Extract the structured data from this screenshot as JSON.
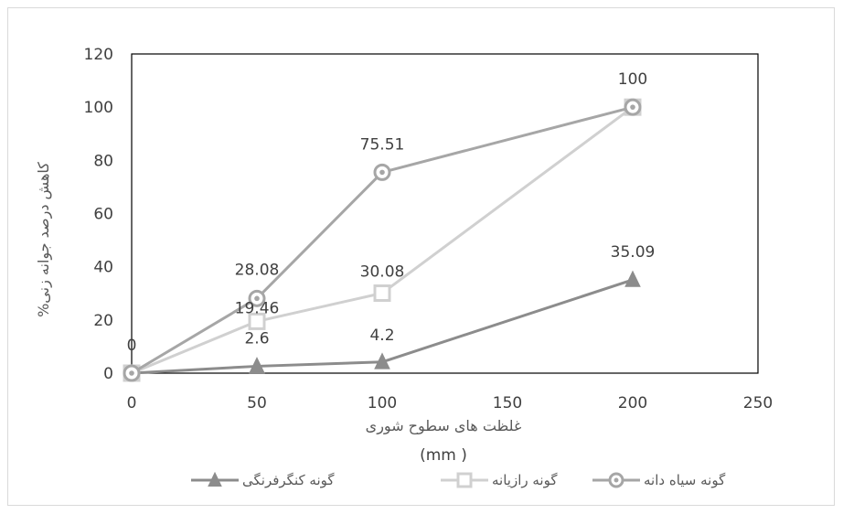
{
  "chart_data": {
    "type": "line",
    "xlabel": "غلظت های سطوح شوری",
    "xunit": "(mm )",
    "ylabel": "%کاهش درصد جوانه زنی",
    "xlim": [
      0,
      250
    ],
    "ylim": [
      0,
      120
    ],
    "x_ticks": [
      "0",
      "50",
      "100",
      "150",
      "200",
      "250"
    ],
    "y_ticks": [
      "0",
      "20",
      "40",
      "60",
      "80",
      "100",
      "120"
    ],
    "grid": false,
    "legend_position": "bottom",
    "series": [
      {
        "name": "گونه سیاه دانه",
        "marker": "circle",
        "color": "#a6a6a6",
        "x": [
          0,
          50,
          100,
          200
        ],
        "values": [
          0,
          28.08,
          75.51,
          100
        ],
        "labels": [
          "0",
          "28.08",
          "75.51",
          "100"
        ]
      },
      {
        "name": "گونه رازیانه",
        "marker": "square",
        "color": "#d0d0d0",
        "x": [
          0,
          50,
          100,
          200
        ],
        "values": [
          0,
          19.46,
          30.08,
          100
        ],
        "labels": [
          "",
          "19.46",
          "30.08",
          ""
        ]
      },
      {
        "name": "گونه کنگرفرنگی",
        "marker": "triangle",
        "color": "#8c8c8c",
        "x": [
          0,
          50,
          100,
          200
        ],
        "values": [
          0,
          2.6,
          4.2,
          35.09
        ],
        "labels": [
          "",
          "2.6",
          "4.2",
          "35.09"
        ]
      }
    ]
  }
}
